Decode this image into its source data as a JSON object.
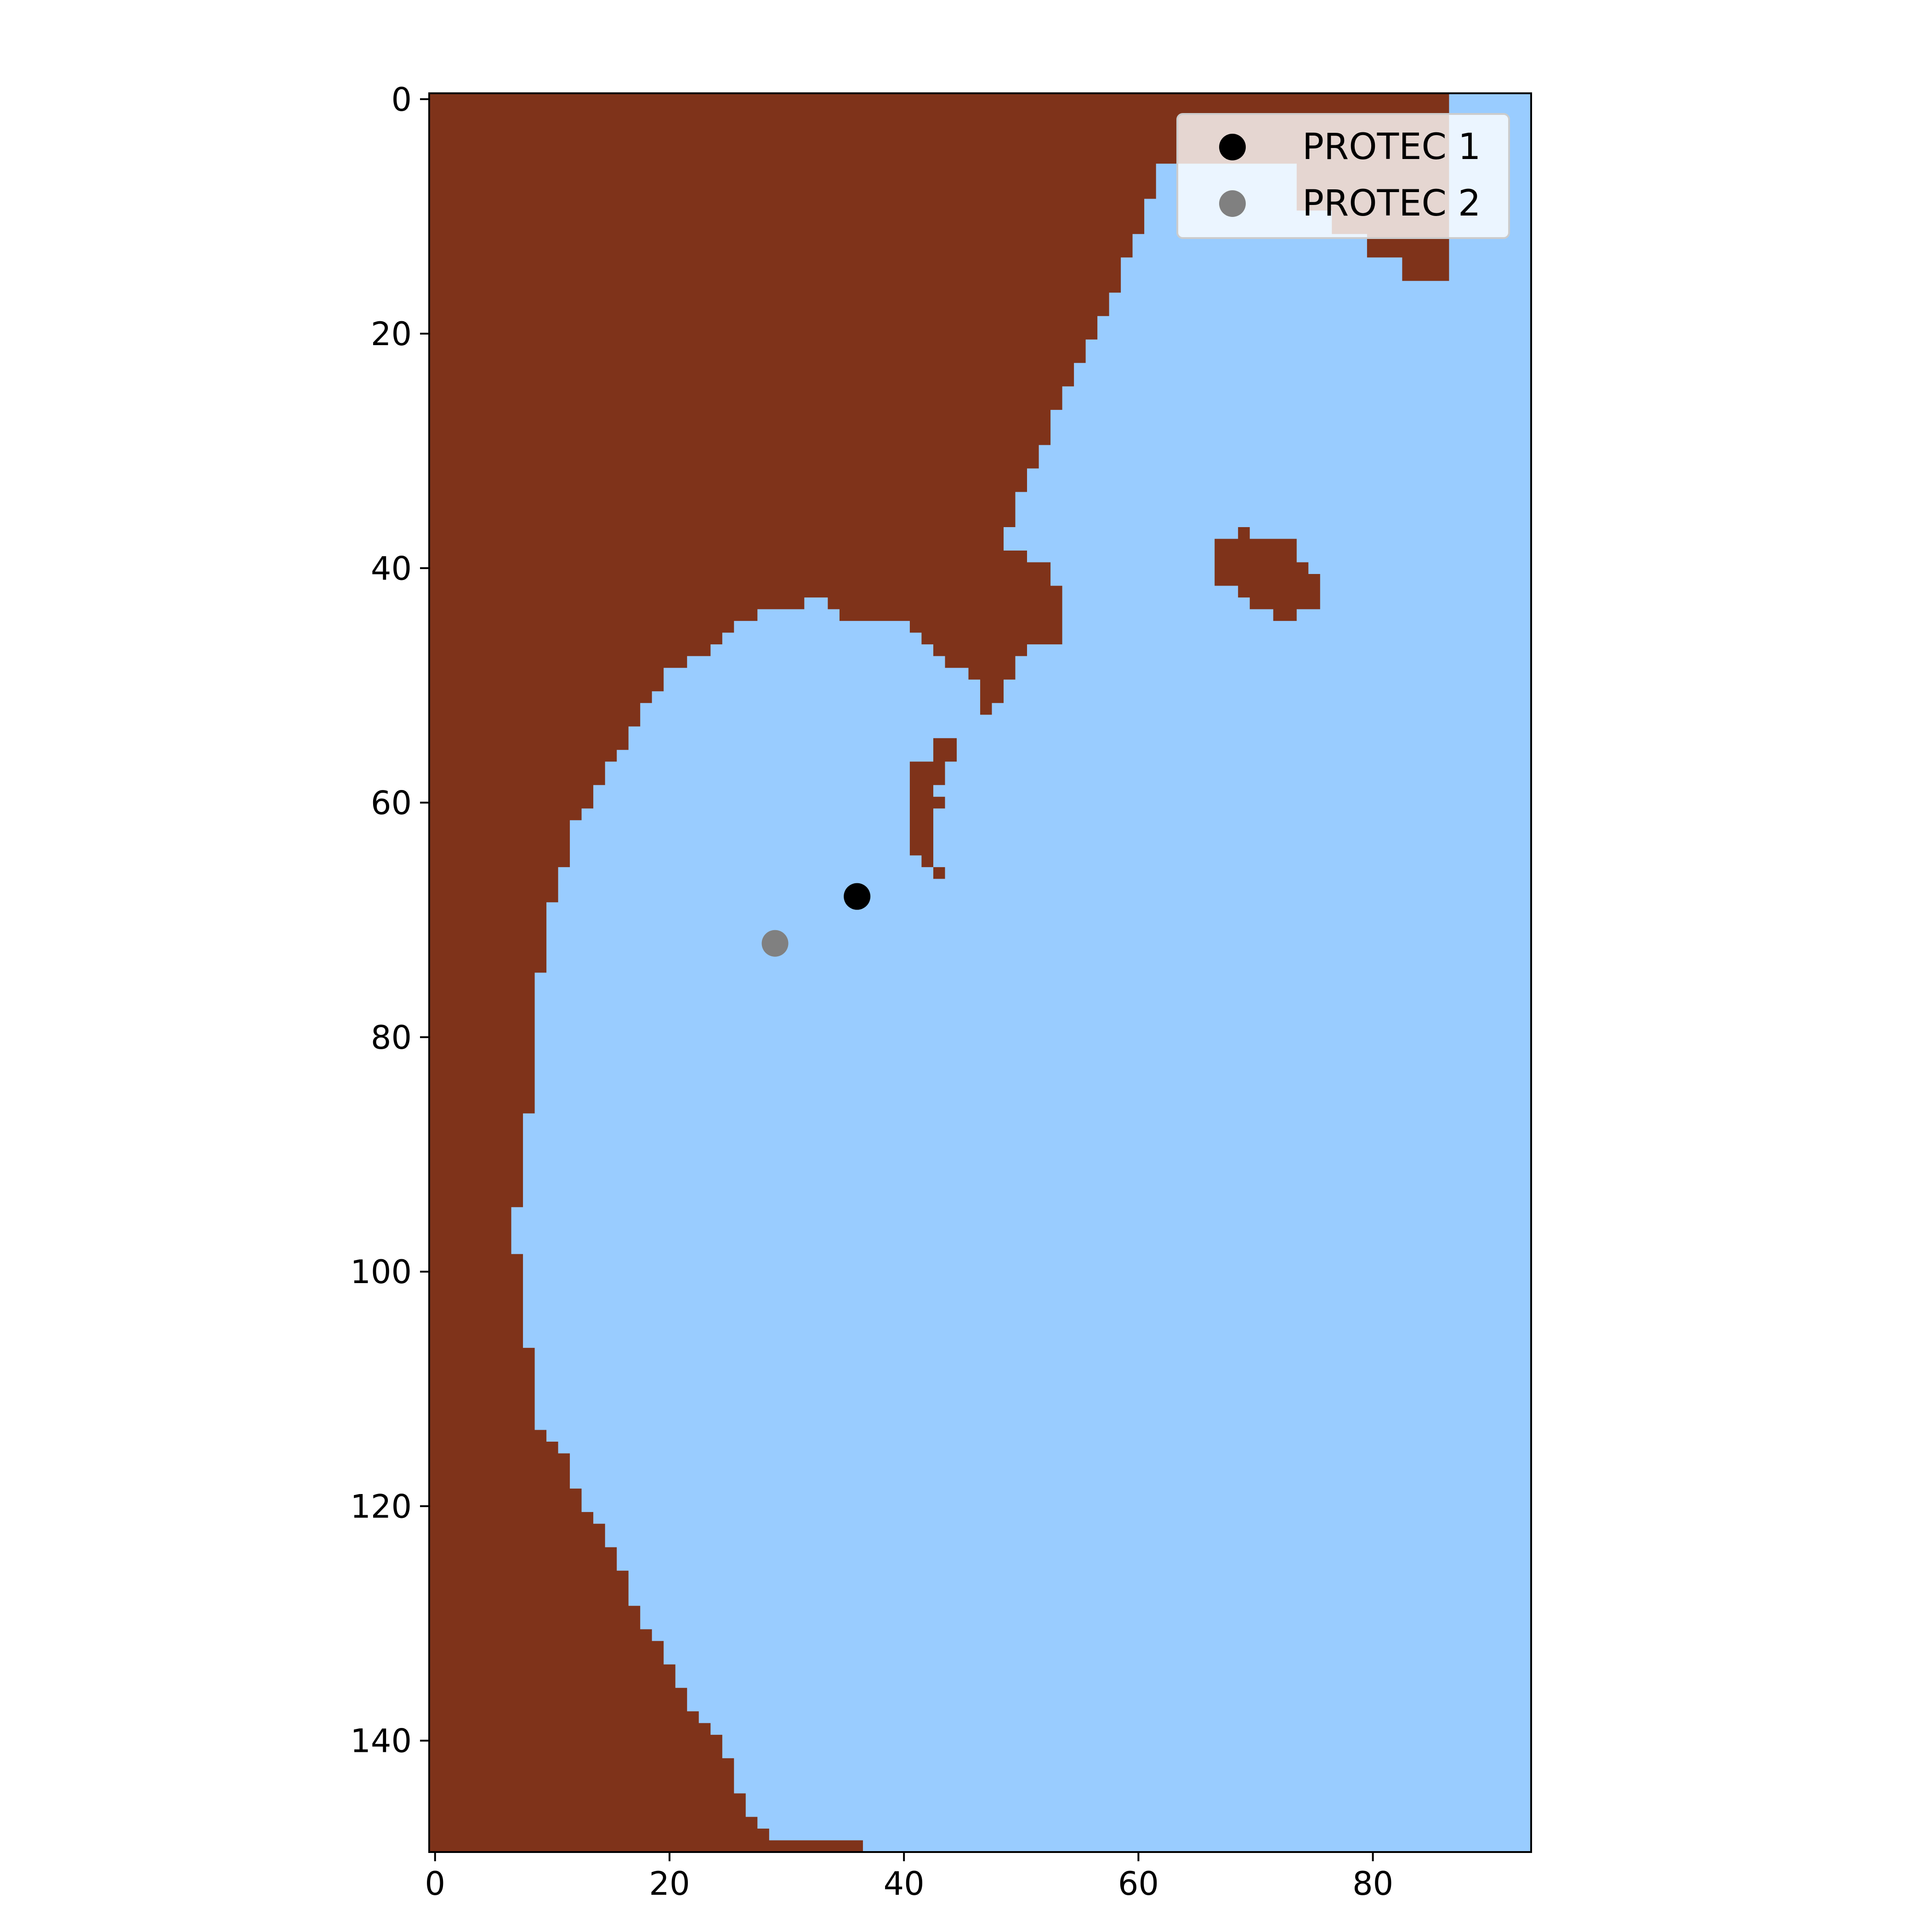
{
  "chart_data": {
    "type": "heatmap",
    "title": "",
    "xlabel": "",
    "ylabel": "",
    "xlim": [
      -0.5,
      93.5
    ],
    "ylim": [
      149.5,
      -0.5
    ],
    "x_ticks": [
      0,
      20,
      40,
      60,
      80
    ],
    "y_ticks": [
      0,
      20,
      40,
      60,
      80,
      100,
      120,
      140
    ],
    "grid": false,
    "legend": {
      "location": "upper right"
    },
    "land_color": "#7f331a",
    "water_color": "#99ccff",
    "land_regions": [
      [
        [
          -0.5,
          -0.5
        ],
        [
          86.5,
          -0.5
        ],
        [
          86.5,
          15.5
        ],
        [
          82.5,
          15.5
        ],
        [
          82.5,
          13.5
        ],
        [
          79.5,
          13.5
        ],
        [
          79.5,
          11.5
        ],
        [
          76.5,
          11.5
        ],
        [
          76.5,
          9.5
        ],
        [
          73.5,
          9.5
        ],
        [
          73.5,
          5.5
        ],
        [
          61.5,
          5.5
        ],
        [
          61.5,
          8.5
        ],
        [
          60.5,
          8.5
        ],
        [
          60.5,
          11.5
        ],
        [
          59.5,
          11.5
        ],
        [
          59.5,
          13.5
        ],
        [
          58.5,
          13.5
        ],
        [
          58.5,
          16.5
        ],
        [
          57.5,
          16.5
        ],
        [
          57.5,
          18.5
        ],
        [
          56.5,
          18.5
        ],
        [
          56.5,
          20.5
        ],
        [
          55.5,
          20.5
        ],
        [
          55.5,
          22.5
        ],
        [
          54.5,
          22.5
        ],
        [
          54.5,
          24.5
        ],
        [
          53.5,
          24.5
        ],
        [
          53.5,
          26.5
        ],
        [
          52.5,
          26.5
        ],
        [
          52.5,
          29.5
        ],
        [
          51.5,
          29.5
        ],
        [
          51.5,
          31.5
        ],
        [
          50.5,
          31.5
        ],
        [
          50.5,
          33.5
        ],
        [
          49.5,
          33.5
        ],
        [
          49.5,
          36.5
        ],
        [
          48.5,
          36.5
        ],
        [
          48.5,
          38.5
        ],
        [
          50.5,
          38.5
        ],
        [
          50.5,
          39.5
        ],
        [
          52.5,
          39.5
        ],
        [
          52.5,
          41.5
        ],
        [
          53.5,
          41.5
        ],
        [
          53.5,
          46.5
        ],
        [
          50.5,
          46.5
        ],
        [
          50.5,
          47.5
        ],
        [
          49.5,
          47.5
        ],
        [
          49.5,
          49.5
        ],
        [
          48.5,
          49.5
        ],
        [
          48.5,
          51.5
        ],
        [
          47.5,
          51.5
        ],
        [
          47.5,
          52.5
        ],
        [
          46.5,
          52.5
        ],
        [
          46.5,
          53.5
        ],
        [
          45.5,
          53.5
        ],
        [
          45.5,
          54.5
        ],
        [
          44.5,
          54.5
        ],
        [
          44.5,
          56.5
        ],
        [
          43.5,
          56.5
        ],
        [
          43.5,
          58.5
        ],
        [
          42.5,
          58.5
        ],
        [
          42.5,
          59.5
        ],
        [
          43.5,
          59.5
        ],
        [
          43.5,
          60.5
        ],
        [
          42.5,
          60.5
        ],
        [
          42.5,
          65.5
        ],
        [
          43.5,
          65.5
        ],
        [
          43.5,
          66.5
        ],
        [
          42.5,
          66.5
        ],
        [
          42.5,
          65.5
        ],
        [
          41.5,
          65.5
        ],
        [
          41.5,
          64.5
        ],
        [
          40.5,
          64.5
        ],
        [
          40.5,
          63.5
        ],
        [
          40.5,
          61.5
        ],
        [
          40.5,
          56.5
        ],
        [
          42.5,
          56.5
        ],
        [
          42.5,
          54.5
        ],
        [
          45.5,
          54.5
        ],
        [
          45.5,
          53.5
        ],
        [
          46.5,
          53.5
        ],
        [
          46.5,
          49.5
        ],
        [
          45.5,
          49.5
        ],
        [
          45.5,
          48.5
        ],
        [
          43.5,
          48.5
        ],
        [
          43.5,
          47.5
        ],
        [
          42.5,
          47.5
        ],
        [
          42.5,
          46.5
        ],
        [
          41.5,
          46.5
        ],
        [
          41.5,
          45.5
        ],
        [
          40.5,
          45.5
        ],
        [
          40.5,
          44.5
        ],
        [
          34.5,
          44.5
        ],
        [
          34.5,
          43.5
        ],
        [
          33.5,
          43.5
        ],
        [
          33.5,
          42.5
        ],
        [
          31.5,
          42.5
        ],
        [
          31.5,
          43.5
        ],
        [
          27.5,
          43.5
        ],
        [
          27.5,
          44.5
        ],
        [
          25.5,
          44.5
        ],
        [
          25.5,
          45.5
        ],
        [
          24.5,
          45.5
        ],
        [
          24.5,
          46.5
        ],
        [
          23.5,
          46.5
        ],
        [
          23.5,
          47.5
        ],
        [
          21.5,
          47.5
        ],
        [
          21.5,
          48.5
        ],
        [
          19.5,
          48.5
        ],
        [
          19.5,
          50.5
        ],
        [
          18.5,
          50.5
        ],
        [
          18.5,
          51.5
        ],
        [
          17.5,
          51.5
        ],
        [
          17.5,
          53.5
        ],
        [
          16.5,
          53.5
        ],
        [
          16.5,
          55.5
        ],
        [
          15.5,
          55.5
        ],
        [
          15.5,
          56.5
        ],
        [
          14.5,
          56.5
        ],
        [
          14.5,
          58.5
        ],
        [
          13.5,
          58.5
        ],
        [
          13.5,
          60.5
        ],
        [
          12.5,
          60.5
        ],
        [
          12.5,
          61.5
        ],
        [
          11.5,
          61.5
        ],
        [
          11.5,
          65.5
        ],
        [
          10.5,
          65.5
        ],
        [
          10.5,
          68.5
        ],
        [
          9.5,
          68.5
        ],
        [
          9.5,
          74.5
        ],
        [
          8.5,
          74.5
        ],
        [
          8.5,
          86.5
        ],
        [
          7.5,
          86.5
        ],
        [
          7.5,
          94.5
        ],
        [
          6.5,
          94.5
        ],
        [
          6.5,
          98.5
        ],
        [
          7.5,
          98.5
        ],
        [
          7.5,
          106.5
        ],
        [
          8.5,
          106.5
        ],
        [
          8.5,
          113.5
        ],
        [
          9.5,
          113.5
        ],
        [
          9.5,
          114.5
        ],
        [
          10.5,
          114.5
        ],
        [
          10.5,
          115.5
        ],
        [
          11.5,
          115.5
        ],
        [
          11.5,
          118.5
        ],
        [
          12.5,
          118.5
        ],
        [
          12.5,
          120.5
        ],
        [
          13.5,
          120.5
        ],
        [
          13.5,
          121.5
        ],
        [
          14.5,
          121.5
        ],
        [
          14.5,
          123.5
        ],
        [
          15.5,
          123.5
        ],
        [
          15.5,
          125.5
        ],
        [
          16.5,
          125.5
        ],
        [
          16.5,
          128.5
        ],
        [
          17.5,
          128.5
        ],
        [
          17.5,
          130.5
        ],
        [
          18.5,
          130.5
        ],
        [
          18.5,
          131.5
        ],
        [
          19.5,
          131.5
        ],
        [
          19.5,
          133.5
        ],
        [
          20.5,
          133.5
        ],
        [
          20.5,
          135.5
        ],
        [
          21.5,
          135.5
        ],
        [
          21.5,
          137.5
        ],
        [
          22.5,
          137.5
        ],
        [
          22.5,
          138.5
        ],
        [
          23.5,
          138.5
        ],
        [
          23.5,
          139.5
        ],
        [
          24.5,
          139.5
        ],
        [
          24.5,
          141.5
        ],
        [
          25.5,
          141.5
        ],
        [
          25.5,
          144.5
        ],
        [
          26.5,
          144.5
        ],
        [
          26.5,
          146.5
        ],
        [
          27.5,
          146.5
        ],
        [
          27.5,
          147.5
        ],
        [
          28.5,
          147.5
        ],
        [
          28.5,
          148.5
        ],
        [
          36.5,
          148.5
        ],
        [
          36.5,
          149.5
        ],
        [
          -0.5,
          149.5
        ]
      ],
      [
        [
          66.5,
          37.5
        ],
        [
          68.5,
          37.5
        ],
        [
          68.5,
          36.5
        ],
        [
          69.5,
          36.5
        ],
        [
          69.5,
          37.5
        ],
        [
          73.5,
          37.5
        ],
        [
          73.5,
          39.5
        ],
        [
          74.5,
          39.5
        ],
        [
          74.5,
          40.5
        ],
        [
          75.5,
          40.5
        ],
        [
          75.5,
          43.5
        ],
        [
          73.5,
          43.5
        ],
        [
          73.5,
          44.5
        ],
        [
          71.5,
          44.5
        ],
        [
          71.5,
          43.5
        ],
        [
          69.5,
          43.5
        ],
        [
          69.5,
          42.5
        ],
        [
          68.5,
          42.5
        ],
        [
          68.5,
          41.5
        ],
        [
          66.5,
          41.5
        ]
      ]
    ],
    "series": [
      {
        "name": "PROTEC 1",
        "color": "#000000",
        "x": [
          36
        ],
        "y": [
          68
        ]
      },
      {
        "name": "PROTEC 2",
        "color": "#808080",
        "x": [
          29
        ],
        "y": [
          72
        ]
      }
    ]
  }
}
